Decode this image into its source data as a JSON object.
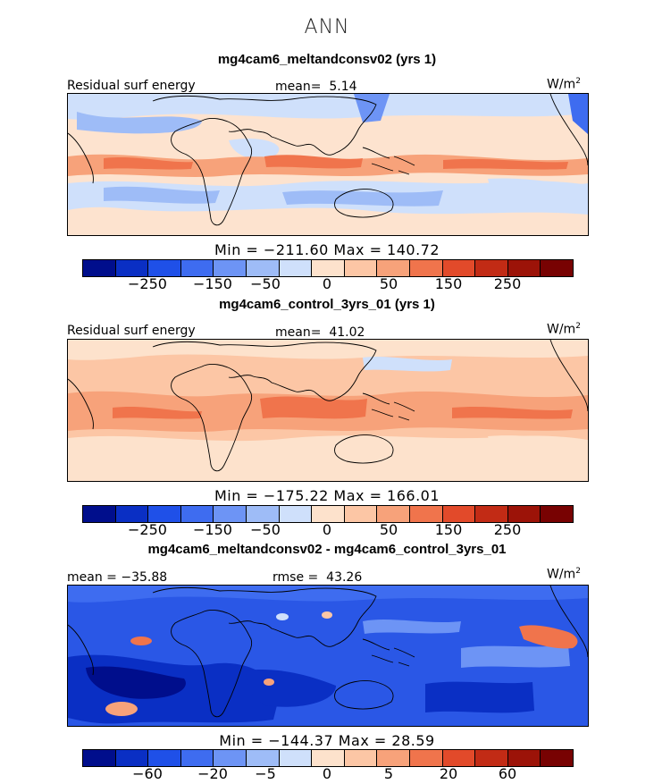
{
  "figure_title": "ANN",
  "colors": {
    "scale": [
      "#000e8c",
      "#0a2fc4",
      "#1f50e8",
      "#3e6cf0",
      "#6d94f5",
      "#9ebcf7",
      "#cfe0fb",
      "#fde2cc",
      "#fcc6a5",
      "#f7a27a",
      "#f0744c",
      "#e24a2a",
      "#c22b15",
      "#9c1308",
      "#780202"
    ],
    "land_outline": "#000000",
    "base_warm": "#fde3cf",
    "base_cool": "#cfe0fb",
    "diff_base": "#2a57e6"
  },
  "panels": [
    {
      "title": "mg4cam6_meltandconsv02 (yrs 1)",
      "left_label": "Residual surf energy",
      "mean_label": "mean=",
      "mean_value": "5.14",
      "units": "W/m",
      "units_sup": "2",
      "minmax": "Min = −211.60 Max = 140.72",
      "colorbar_ticks": [
        "−250",
        "−150",
        "−50",
        "0",
        "50",
        "150",
        "250"
      ]
    },
    {
      "title": "mg4cam6_control_3yrs_01 (yrs 1)",
      "left_label": "Residual surf energy",
      "mean_label": "mean=",
      "mean_value": "41.02",
      "units": "W/m",
      "units_sup": "2",
      "minmax": "Min = −175.22 Max = 166.01",
      "colorbar_ticks": [
        "−250",
        "−150",
        "−50",
        "0",
        "50",
        "150",
        "250"
      ]
    },
    {
      "title": "mg4cam6_meltandconsv02 - mg4cam6_control_3yrs_01",
      "left_label": "mean = −35.88",
      "mean_label": "rmse =",
      "mean_value": "43.26",
      "units": "W/m",
      "units_sup": "2",
      "minmax": "Min = −144.37 Max =   28.59",
      "colorbar_ticks": [
        "−60",
        "−20",
        "−5",
        "0",
        "5",
        "20",
        "60"
      ]
    }
  ]
}
